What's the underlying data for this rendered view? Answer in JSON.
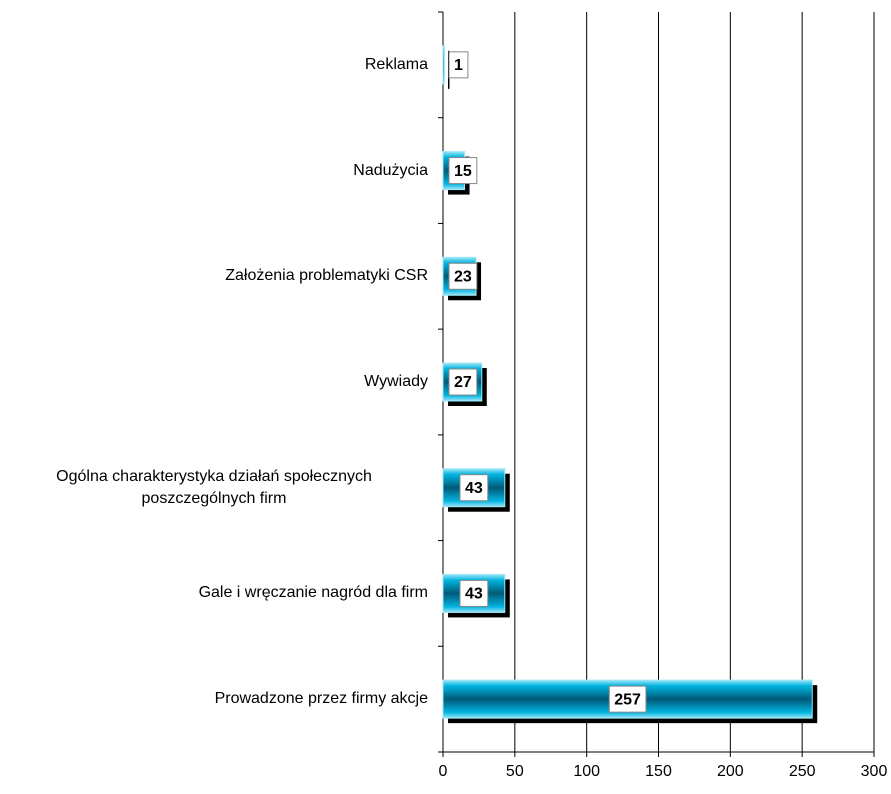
{
  "chart_data": {
    "type": "bar",
    "orientation": "horizontal",
    "categories": [
      "Reklama",
      "Nadużycia",
      "Założenia problematyki CSR",
      "Wywiady",
      "Ogólna charakterystyka działań społecznych poszczególnych firm",
      "Gale i wręczanie nagród dla firm",
      "Prowadzone przez firmy akcje"
    ],
    "values": [
      1,
      15,
      23,
      27,
      43,
      43,
      257
    ],
    "color": "#00a6d6",
    "xlim": [
      0,
      300
    ],
    "xticks": [
      0,
      50,
      100,
      150,
      200,
      250,
      300
    ],
    "grid": true
  }
}
